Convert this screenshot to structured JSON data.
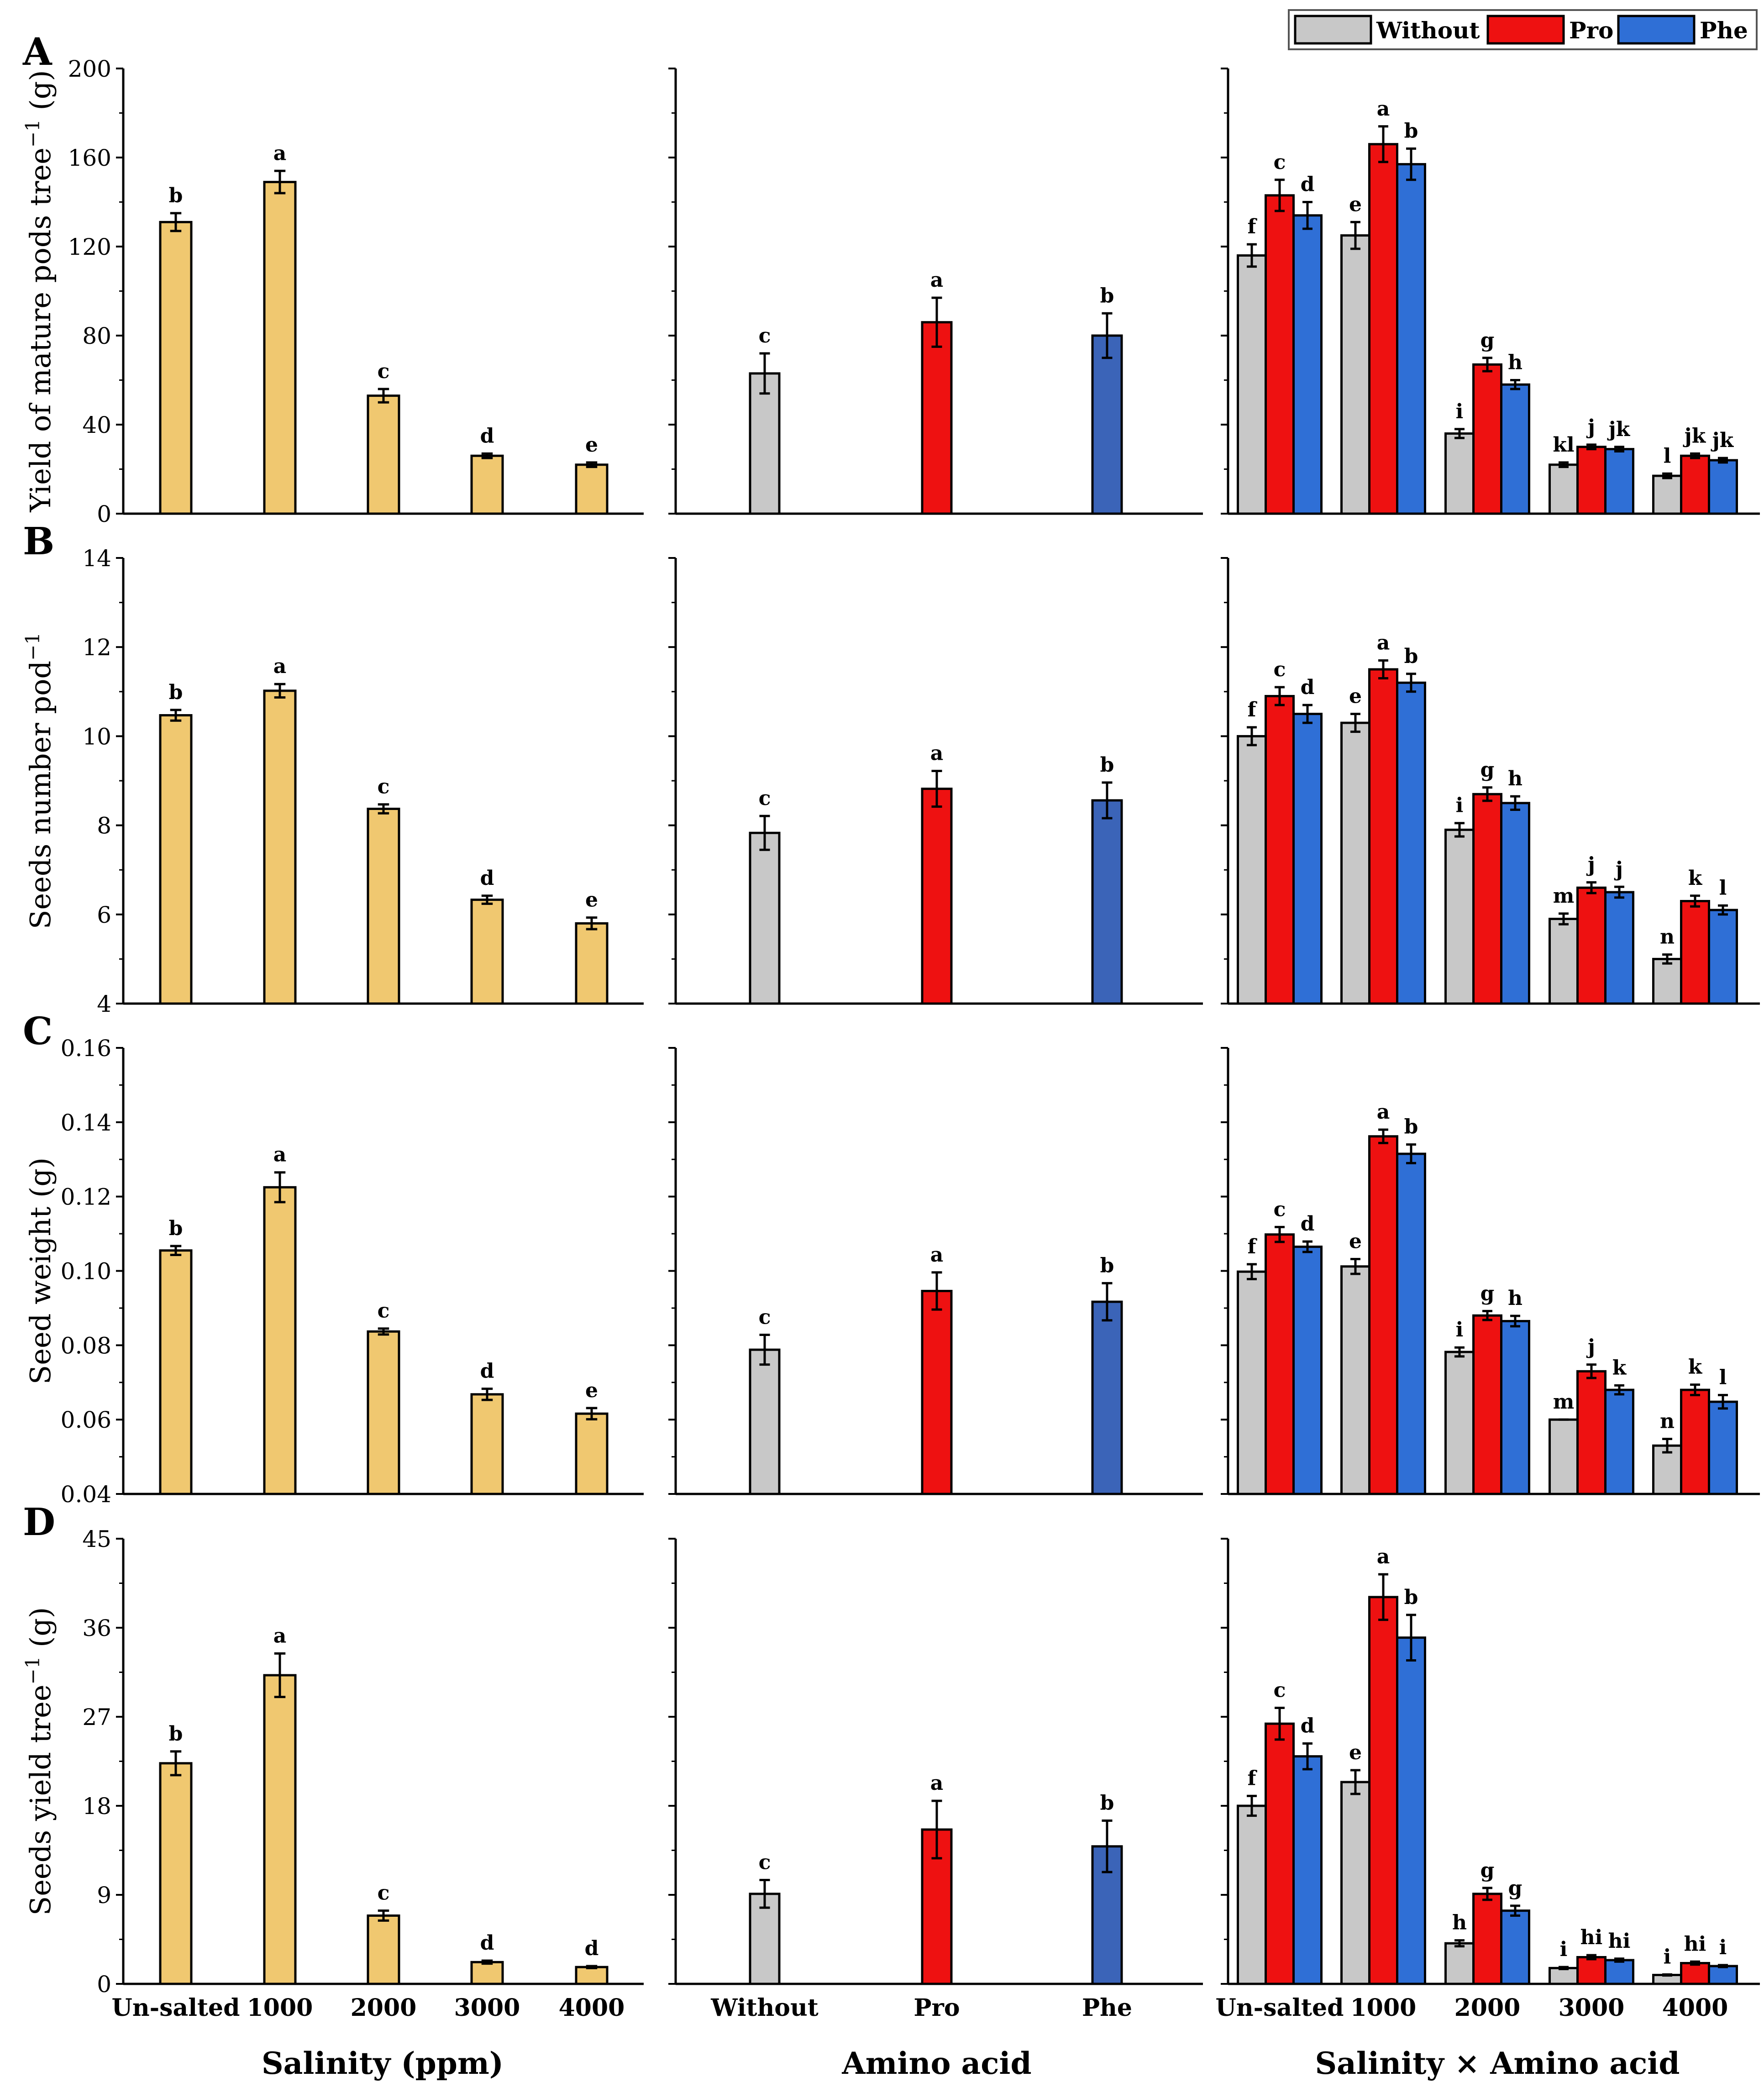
{
  "legend": {
    "entries": [
      {
        "label": "Without",
        "color": "#c8c8c8"
      },
      {
        "label": "Pro",
        "color": "#ee1111"
      },
      {
        "label": "Phe",
        "color": "#2f6fd6"
      }
    ]
  },
  "colors": {
    "salinity_bar": "#f0c870",
    "without": "#c8c8c8",
    "pro": "#ee1111",
    "phe": "#2f6fd6",
    "amino_phe": "#3b64b8"
  },
  "x_titles": {
    "salinity": "Salinity (ppm)",
    "amino": "Amino acid",
    "interaction": "Salinity × Amino acid"
  },
  "x_categories": {
    "salinity": [
      "Un-salted",
      "1000",
      "2000",
      "3000",
      "4000"
    ],
    "amino": [
      "Without",
      "Pro",
      "Phe"
    ]
  },
  "chart_data": [
    {
      "type": "bar",
      "panel": "A",
      "ylabel": "Yield of mature pods tree",
      "ylabel_sup": "−1",
      "ylabel_unit": " (g)",
      "ylim": [
        0,
        200
      ],
      "yticks": [
        "0",
        "40",
        "80",
        "120",
        "160",
        "200"
      ],
      "salinity": {
        "categories": [
          "Un-salted",
          "1000",
          "2000",
          "3000",
          "4000"
        ],
        "values": [
          131,
          149,
          53,
          26,
          22
        ],
        "errors": [
          4,
          5,
          3,
          1,
          1
        ],
        "letters": [
          "b",
          "a",
          "c",
          "d",
          "e"
        ]
      },
      "amino": {
        "categories": [
          "Without",
          "Pro",
          "Phe"
        ],
        "values": [
          63,
          86,
          80
        ],
        "errors": [
          9,
          11,
          10
        ],
        "letters": [
          "c",
          "a",
          "b"
        ]
      },
      "interaction": {
        "categories": [
          "Un-salted",
          "1000",
          "2000",
          "3000",
          "4000"
        ],
        "series": [
          {
            "name": "Without",
            "values": [
              116,
              125,
              36,
              22,
              17
            ],
            "errors": [
              5,
              6,
              2,
              1,
              1
            ],
            "letters": [
              "f",
              "e",
              "i",
              "kl",
              "l"
            ]
          },
          {
            "name": "Pro",
            "values": [
              143,
              166,
              67,
              30,
              26
            ],
            "errors": [
              7,
              8,
              3,
              1,
              1
            ],
            "letters": [
              "c",
              "a",
              "g",
              "j",
              "jk"
            ]
          },
          {
            "name": "Phe",
            "values": [
              134,
              157,
              58,
              29,
              24
            ],
            "errors": [
              6,
              7,
              2,
              1,
              1
            ],
            "letters": [
              "d",
              "b",
              "h",
              "jk",
              "jk"
            ]
          }
        ]
      }
    },
    {
      "type": "bar",
      "panel": "B",
      "ylabel": "Seeds number pod",
      "ylabel_sup": "−1",
      "ylabel_unit": "",
      "ylim": [
        4,
        14
      ],
      "yticks": [
        "4",
        "6",
        "8",
        "10",
        "12",
        "14"
      ],
      "salinity": {
        "categories": [
          "Un-salted",
          "1000",
          "2000",
          "3000",
          "4000"
        ],
        "values": [
          10.47,
          11.02,
          8.37,
          6.33,
          5.8
        ],
        "errors": [
          0.12,
          0.15,
          0.1,
          0.09,
          0.13
        ],
        "letters": [
          "b",
          "a",
          "c",
          "d",
          "e"
        ]
      },
      "amino": {
        "categories": [
          "Without",
          "Pro",
          "Phe"
        ],
        "values": [
          7.83,
          8.82,
          8.56
        ],
        "errors": [
          0.38,
          0.4,
          0.4
        ],
        "letters": [
          "c",
          "a",
          "b"
        ]
      },
      "interaction": {
        "categories": [
          "Un-salted",
          "1000",
          "2000",
          "3000",
          "4000"
        ],
        "series": [
          {
            "name": "Without",
            "values": [
              10.0,
              10.3,
              7.9,
              5.9,
              5.0
            ],
            "errors": [
              0.2,
              0.2,
              0.15,
              0.12,
              0.1
            ],
            "letters": [
              "f",
              "e",
              "i",
              "m",
              "n"
            ]
          },
          {
            "name": "Pro",
            "values": [
              10.9,
              11.5,
              8.7,
              6.6,
              6.3
            ],
            "errors": [
              0.2,
              0.2,
              0.15,
              0.12,
              0.12
            ],
            "letters": [
              "c",
              "a",
              "g",
              "j",
              "k"
            ]
          },
          {
            "name": "Phe",
            "values": [
              10.5,
              11.2,
              8.5,
              6.5,
              6.1
            ],
            "errors": [
              0.2,
              0.2,
              0.15,
              0.12,
              0.1
            ],
            "letters": [
              "d",
              "b",
              "h",
              "j",
              "l"
            ]
          }
        ]
      }
    },
    {
      "type": "bar",
      "panel": "C",
      "ylabel": "Seed weight (g)",
      "ylabel_sup": "",
      "ylabel_unit": "",
      "ylim": [
        0.04,
        0.16
      ],
      "yticks": [
        "0.04",
        "0.06",
        "0.08",
        "0.10",
        "0.12",
        "0.14",
        "0.16"
      ],
      "salinity": {
        "categories": [
          "Un-salted",
          "1000",
          "2000",
          "3000",
          "4000"
        ],
        "values": [
          0.1055,
          0.1225,
          0.0837,
          0.0668,
          0.0616
        ],
        "errors": [
          0.0012,
          0.004,
          0.0008,
          0.0015,
          0.0015
        ],
        "letters": [
          "b",
          "a",
          "c",
          "d",
          "e"
        ]
      },
      "amino": {
        "categories": [
          "Without",
          "Pro",
          "Phe"
        ],
        "values": [
          0.0788,
          0.0946,
          0.0917
        ],
        "errors": [
          0.004,
          0.005,
          0.005
        ],
        "letters": [
          "c",
          "a",
          "b"
        ]
      },
      "interaction": {
        "categories": [
          "Un-salted",
          "1000",
          "2000",
          "3000",
          "4000"
        ],
        "series": [
          {
            "name": "Without",
            "values": [
              0.0998,
              0.1012,
              0.0782,
              0.06,
              0.053
            ],
            "errors": [
              0.002,
              0.002,
              0.0012,
              0.0,
              0.0018
            ],
            "letters": [
              "f",
              "e",
              "i",
              "m",
              "n"
            ]
          },
          {
            "name": "Pro",
            "values": [
              0.1098,
              0.1362,
              0.088,
              0.073,
              0.068
            ],
            "errors": [
              0.002,
              0.0018,
              0.0012,
              0.0018,
              0.0014
            ],
            "letters": [
              "c",
              "a",
              "g",
              "j",
              "k"
            ]
          },
          {
            "name": "Phe",
            "values": [
              0.1065,
              0.1315,
              0.0865,
              0.068,
              0.0648
            ],
            "errors": [
              0.0014,
              0.0025,
              0.0014,
              0.0012,
              0.0018
            ],
            "letters": [
              "d",
              "b",
              "h",
              "k",
              "l"
            ]
          }
        ]
      }
    },
    {
      "type": "bar",
      "panel": "D",
      "ylabel": "Seeds yield tree",
      "ylabel_sup": "−1",
      "ylabel_unit": " (g)",
      "ylim": [
        0,
        45
      ],
      "yticks": [
        "0",
        "9",
        "18",
        "27",
        "36",
        "45"
      ],
      "salinity": {
        "categories": [
          "Un-salted",
          "1000",
          "2000",
          "3000",
          "4000"
        ],
        "values": [
          22.3,
          31.2,
          6.9,
          2.2,
          1.7
        ],
        "errors": [
          1.2,
          2.2,
          0.5,
          0.15,
          0.1
        ],
        "letters": [
          "b",
          "a",
          "c",
          "d",
          "d"
        ]
      },
      "amino": {
        "categories": [
          "Without",
          "Pro",
          "Phe"
        ],
        "values": [
          9.1,
          15.6,
          13.9
        ],
        "errors": [
          1.4,
          2.9,
          2.6
        ],
        "letters": [
          "c",
          "a",
          "b"
        ]
      },
      "interaction": {
        "categories": [
          "Un-salted",
          "1000",
          "2000",
          "3000",
          "4000"
        ],
        "series": [
          {
            "name": "Without",
            "values": [
              18.0,
              20.4,
              4.1,
              1.6,
              0.9
            ],
            "errors": [
              1.0,
              1.2,
              0.3,
              0.1,
              0.05
            ],
            "letters": [
              "f",
              "e",
              "h",
              "i",
              "i"
            ]
          },
          {
            "name": "Pro",
            "values": [
              26.3,
              39.1,
              9.1,
              2.7,
              2.1
            ],
            "errors": [
              1.6,
              2.3,
              0.6,
              0.2,
              0.15
            ],
            "letters": [
              "c",
              "a",
              "g",
              "hi",
              "hi"
            ]
          },
          {
            "name": "Phe",
            "values": [
              23.0,
              35.0,
              7.4,
              2.4,
              1.8
            ],
            "errors": [
              1.3,
              2.3,
              0.5,
              0.15,
              0.1
            ],
            "letters": [
              "d",
              "b",
              "g",
              "hi",
              "i"
            ]
          }
        ]
      }
    }
  ]
}
